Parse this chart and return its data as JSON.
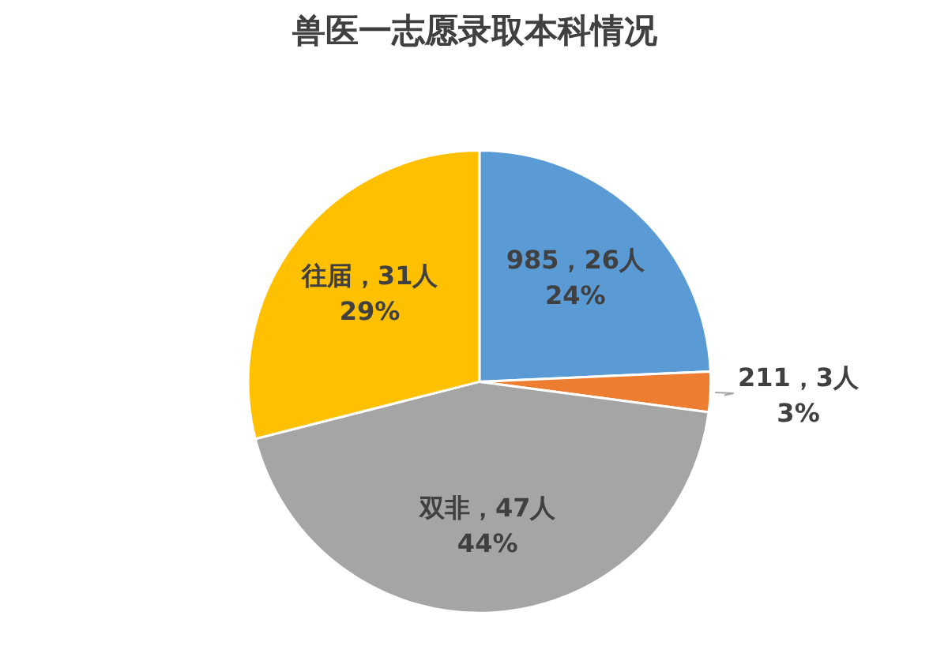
{
  "chart_data": {
    "type": "pie",
    "title": "兽医一志愿录取本科情况",
    "categories": [
      "985",
      "211",
      "双非",
      "往届"
    ],
    "values": [
      26,
      3,
      47,
      31
    ],
    "colors": [
      "#5b9bd5",
      "#ed7d31",
      "#a5a5a5",
      "#ffc000"
    ],
    "value_labels": [
      "26人\n24%",
      "3人\n3%",
      "47人\n44%",
      "31人\n29%"
    ],
    "legend": false
  }
}
